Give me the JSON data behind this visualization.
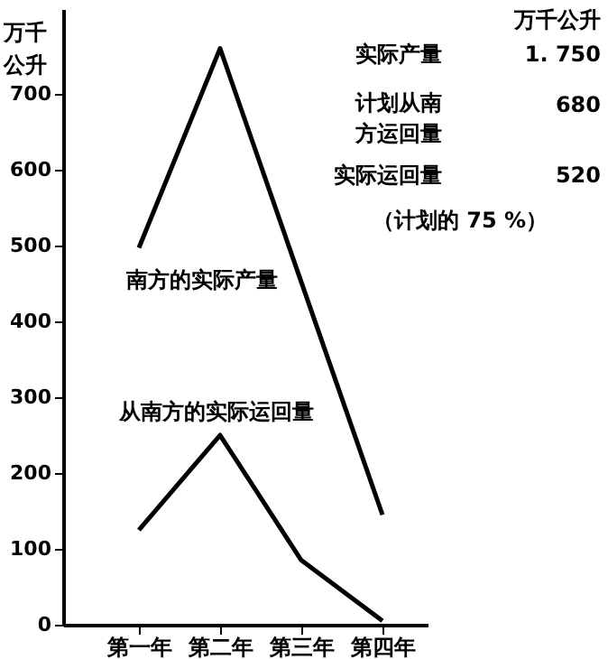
{
  "chart_data": {
    "type": "line",
    "ylabel": "万千公升",
    "categories": [
      "第一年",
      "第二年",
      "第三年",
      "第四年"
    ],
    "series": [
      {
        "name": "南方的实际产量",
        "color": "#000000",
        "values": [
          497,
          760,
          452,
          145
        ]
      },
      {
        "name": "从南方的实际运回量",
        "color": "#000000",
        "values": [
          125,
          250,
          85,
          5
        ]
      }
    ],
    "ylim": [
      0,
      812
    ],
    "yticks": [
      0,
      100,
      200,
      300,
      400,
      500,
      600,
      700
    ],
    "grid": false,
    "marker": "none",
    "line_style": "solid",
    "annotations": [
      "万千公升",
      "实际产量",
      "1. 750",
      "计划从南方运回量",
      "680",
      "实际运回量",
      "520",
      "（计划的 75 %）"
    ]
  }
}
